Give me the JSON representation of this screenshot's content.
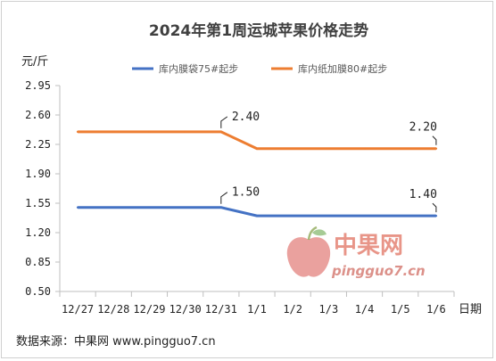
{
  "chart_data": {
    "type": "line",
    "title": "2024年第1周运城苹果价格走势",
    "ylabel": "元/斤",
    "xlabel": "日期",
    "categories": [
      "12/27",
      "12/28",
      "12/29",
      "12/30",
      "12/31",
      "1/1",
      "1/2",
      "1/3",
      "1/4",
      "1/5",
      "1/6"
    ],
    "yticks": [
      "0.50",
      "0.85",
      "1.20",
      "1.55",
      "1.90",
      "2.25",
      "2.60",
      "2.95"
    ],
    "ylim": [
      0.5,
      2.95
    ],
    "grid": false,
    "legend_position": "top",
    "series": [
      {
        "name": "库内膜袋75#起步",
        "color": "#4472C4",
        "values": [
          1.5,
          1.5,
          1.5,
          1.5,
          1.5,
          1.4,
          1.4,
          1.4,
          1.4,
          1.4,
          1.4
        ]
      },
      {
        "name": "库内纸加膜80#起步",
        "color": "#ED7D31",
        "values": [
          2.4,
          2.4,
          2.4,
          2.4,
          2.4,
          2.2,
          2.2,
          2.2,
          2.2,
          2.2,
          2.2
        ]
      }
    ],
    "annotations": [
      {
        "series": 0,
        "index": 4,
        "text": "1.50"
      },
      {
        "series": 0,
        "index": 10,
        "text": "1.40"
      },
      {
        "series": 1,
        "index": 4,
        "text": "2.40"
      },
      {
        "series": 1,
        "index": 10,
        "text": "2.20"
      }
    ]
  },
  "watermark": {
    "brand": "中果网",
    "url": "pingguo7.cn"
  },
  "source": "数据来源：中果网 www.pingguo7.cn"
}
